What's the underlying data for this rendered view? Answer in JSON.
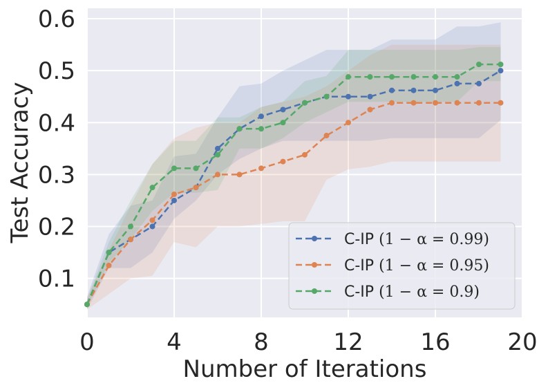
{
  "chart_data": {
    "type": "line",
    "xlabel": "Number of Iterations",
    "ylabel": "Test Accuracy",
    "xlim": [
      0,
      20
    ],
    "ylim": [
      0.025,
      0.62
    ],
    "xticks": [
      0,
      4,
      8,
      12,
      16,
      20
    ],
    "xtick_labels": [
      "0",
      "4",
      "8",
      "12",
      "16",
      "20"
    ],
    "yticks": [
      0.1,
      0.2,
      0.3,
      0.4,
      0.5,
      0.6
    ],
    "ytick_labels": [
      "0.1",
      "0.2",
      "0.3",
      "0.4",
      "0.5",
      "0.6"
    ],
    "grid": true,
    "legend_position": "bottom-right",
    "x": [
      0,
      1,
      2,
      3,
      4,
      5,
      6,
      7,
      8,
      9,
      10,
      11,
      12,
      13,
      14,
      15,
      16,
      17,
      18,
      19
    ],
    "series": [
      {
        "name": "C-IP (1 − α = 0.99)",
        "legend_prefix": "C-IP ",
        "legend_math": "(1 − α = 0.99)",
        "color": "#4c72b0",
        "values": [
          0.05,
          0.15,
          0.175,
          0.2,
          0.25,
          0.275,
          0.35,
          0.388,
          0.412,
          0.425,
          0.438,
          0.45,
          0.45,
          0.45,
          0.462,
          0.462,
          0.462,
          0.475,
          0.475,
          0.5
        ],
        "upper": [
          0.065,
          0.185,
          0.24,
          0.25,
          0.335,
          0.34,
          0.41,
          0.47,
          0.475,
          0.5,
          0.52,
          0.54,
          0.54,
          0.54,
          0.56,
          0.56,
          0.56,
          0.585,
          0.585,
          0.593
        ],
        "lower": [
          0.04,
          0.12,
          0.12,
          0.15,
          0.215,
          0.25,
          0.3,
          0.33,
          0.35,
          0.365,
          0.365,
          0.365,
          0.365,
          0.365,
          0.37,
          0.37,
          0.37,
          0.37,
          0.37,
          0.405
        ]
      },
      {
        "name": "C-IP (1 − α = 0.95)",
        "legend_prefix": "C-IP ",
        "legend_math": "(1 − α = 0.95)",
        "color": "#dd8452",
        "values": [
          0.05,
          0.125,
          0.175,
          0.212,
          0.262,
          0.275,
          0.3,
          0.3,
          0.312,
          0.325,
          0.338,
          0.375,
          0.4,
          0.425,
          0.438,
          0.438,
          0.438,
          0.438,
          0.438,
          0.438
        ],
        "upper": [
          0.062,
          0.155,
          0.24,
          0.32,
          0.37,
          0.39,
          0.4,
          0.4,
          0.43,
          0.44,
          0.45,
          0.47,
          0.5,
          0.53,
          0.55,
          0.55,
          0.55,
          0.55,
          0.55,
          0.55
        ],
        "lower": [
          0.04,
          0.07,
          0.1,
          0.105,
          0.17,
          0.16,
          0.2,
          0.2,
          0.205,
          0.21,
          0.21,
          0.29,
          0.31,
          0.315,
          0.325,
          0.325,
          0.325,
          0.325,
          0.325,
          0.325
        ]
      },
      {
        "name": "C-IP (1 − α = 0.9)",
        "legend_prefix": "C-IP ",
        "legend_math": "(1 − α = 0.9)",
        "color": "#55a868",
        "values": [
          0.05,
          0.15,
          0.2,
          0.275,
          0.312,
          0.312,
          0.338,
          0.388,
          0.388,
          0.4,
          0.438,
          0.45,
          0.488,
          0.488,
          0.488,
          0.488,
          0.488,
          0.488,
          0.512,
          0.512
        ],
        "upper": [
          0.06,
          0.17,
          0.25,
          0.32,
          0.365,
          0.365,
          0.41,
          0.41,
          0.43,
          0.44,
          0.48,
          0.49,
          0.54,
          0.54,
          0.54,
          0.54,
          0.54,
          0.54,
          0.545,
          0.545
        ],
        "lower": [
          0.045,
          0.13,
          0.175,
          0.23,
          0.265,
          0.265,
          0.27,
          0.35,
          0.35,
          0.37,
          0.4,
          0.42,
          0.44,
          0.44,
          0.44,
          0.44,
          0.44,
          0.44,
          0.48,
          0.48
        ]
      }
    ]
  }
}
